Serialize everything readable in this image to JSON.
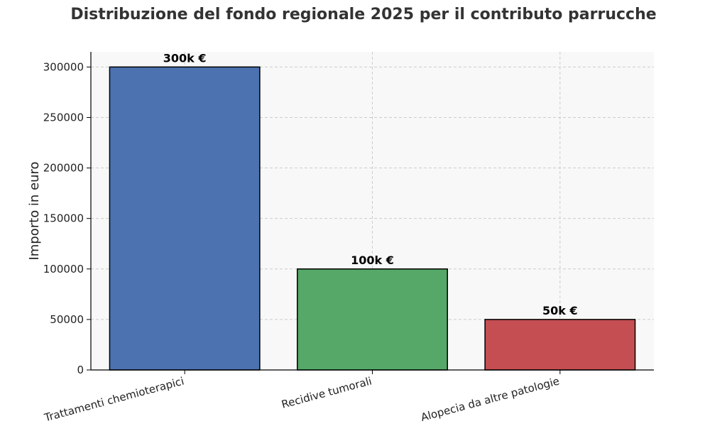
{
  "chart_data": {
    "type": "bar",
    "title": "Distribuzione del fondo regionale 2025 per il contributo parrucche",
    "xlabel": "",
    "ylabel": "Importo in euro",
    "categories": [
      "Trattamenti chemioterapici",
      "Recidive tumorali",
      "Alopecia da altre patologie"
    ],
    "values": [
      300000,
      100000,
      50000
    ],
    "data_labels": [
      "300k €",
      "100k €",
      "50k €"
    ],
    "colors": [
      "#4c72b0",
      "#55a868",
      "#c44e52"
    ],
    "ylim": [
      0,
      315000
    ],
    "yticks": [
      0,
      50000,
      100000,
      150000,
      200000,
      250000,
      300000
    ],
    "grid": true,
    "plot_background": "#f8f8f8"
  }
}
